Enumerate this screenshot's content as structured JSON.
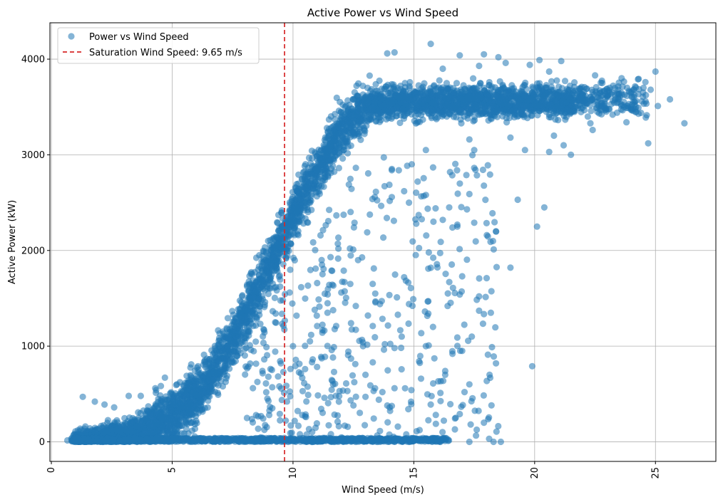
{
  "chart_data": {
    "type": "scatter",
    "title": "Active Power vs Wind Speed",
    "xlabel": "Wind Speed (m/s)",
    "ylabel": "Active Power (kW)",
    "xlim": [
      -0.06,
      27.5
    ],
    "ylim": [
      -205,
      4380
    ],
    "xticks": [
      0,
      5,
      10,
      15,
      20,
      25
    ],
    "yticks": [
      0,
      1000,
      2000,
      3000,
      4000
    ],
    "x_tick_rotation_deg": 90,
    "grid": true,
    "legend_position": "top-left",
    "series": [
      {
        "name": "Power vs Wind Speed",
        "kind": "scatter",
        "color": "#1f77b4",
        "alpha": 0.55,
        "density_profile": {
          "description": "dense cloud following a power curve: near 0 kW below ~4 m/s, rising steeply from ~5.5 to ~13 m/s, saturating at ~3300-3800 kW up to ~22 m/s, sparse above",
          "curve_points": [
            [
              1.0,
              0
            ],
            [
              3.0,
              60
            ],
            [
              4.0,
              130
            ],
            [
              5.0,
              260
            ],
            [
              6.0,
              480
            ],
            [
              7.0,
              850
            ],
            [
              8.0,
              1300
            ],
            [
              9.0,
              1850
            ],
            [
              10.0,
              2350
            ],
            [
              11.0,
              2850
            ],
            [
              12.0,
              3250
            ],
            [
              13.0,
              3500
            ],
            [
              14.0,
              3550
            ],
            [
              22.0,
              3560
            ],
            [
              25.0,
              3600
            ]
          ]
        },
        "points": [
          [
            1.0,
            0
          ],
          [
            1.1,
            120
          ],
          [
            1.3,
            470
          ],
          [
            1.8,
            420
          ],
          [
            2.2,
            390
          ],
          [
            2.6,
            360
          ],
          [
            3.2,
            480
          ],
          [
            3.7,
            480
          ],
          [
            4.3,
            560
          ],
          [
            4.7,
            670
          ],
          [
            5.6,
            690
          ],
          [
            13.9,
            4060
          ],
          [
            14.2,
            4070
          ],
          [
            15.7,
            4160
          ],
          [
            16.9,
            4040
          ],
          [
            17.9,
            4050
          ],
          [
            18.5,
            4020
          ],
          [
            20.2,
            3990
          ],
          [
            21.1,
            3980
          ],
          [
            23.6,
            3800
          ],
          [
            24.8,
            3680
          ],
          [
            25.0,
            3870
          ],
          [
            25.6,
            3580
          ],
          [
            26.2,
            3330
          ],
          [
            24.7,
            3120
          ],
          [
            21.5,
            3000
          ],
          [
            20.6,
            3030
          ],
          [
            20.4,
            2450
          ],
          [
            20.1,
            2250
          ],
          [
            19.3,
            2530
          ],
          [
            18.4,
            2200
          ],
          [
            17.3,
            2590
          ],
          [
            16.5,
            2820
          ],
          [
            15.5,
            2580
          ],
          [
            19.0,
            1820
          ],
          [
            17.7,
            1520
          ],
          [
            17.7,
            1370
          ],
          [
            17.0,
            1730
          ],
          [
            15.6,
            1810
          ],
          [
            14.6,
            1720
          ],
          [
            14.3,
            1510
          ],
          [
            13.6,
            1440
          ],
          [
            13.1,
            1320
          ],
          [
            12.4,
            1240
          ],
          [
            12.0,
            1560
          ],
          [
            11.5,
            1640
          ],
          [
            11.2,
            1850
          ],
          [
            19.9,
            790
          ],
          [
            18.4,
            820
          ],
          [
            16.3,
            740
          ],
          [
            16.8,
            1090
          ],
          [
            17.4,
            1100
          ],
          [
            17.0,
            950
          ],
          [
            15.6,
            1470
          ],
          [
            15.6,
            1340
          ],
          [
            14.8,
            1440
          ],
          [
            13.3,
            830
          ],
          [
            13.0,
            700
          ],
          [
            14.2,
            560
          ],
          [
            14.0,
            360
          ],
          [
            14.9,
            540
          ],
          [
            15.3,
            660
          ],
          [
            15.7,
            390
          ],
          [
            16.1,
            510
          ],
          [
            17.3,
            600
          ],
          [
            17.1,
            520
          ],
          [
            16.9,
            290
          ],
          [
            17.9,
            200
          ],
          [
            16.7,
            130
          ],
          [
            18.3,
            0
          ],
          [
            18.6,
            0
          ],
          [
            17.3,
            0
          ],
          [
            16.1,
            0
          ],
          [
            14.8,
            0
          ],
          [
            13.5,
            0
          ],
          [
            12.6,
            0
          ],
          [
            11.7,
            0
          ],
          [
            10.8,
            0
          ],
          [
            9.8,
            0
          ],
          [
            8.9,
            990
          ],
          [
            8.0,
            970
          ],
          [
            10.0,
            1000
          ],
          [
            10.7,
            1050
          ],
          [
            10.5,
            760
          ],
          [
            10.4,
            530
          ],
          [
            11.3,
            460
          ],
          [
            11.9,
            420
          ],
          [
            12.5,
            380
          ],
          [
            13.0,
            470
          ],
          [
            13.7,
            520
          ],
          [
            12.9,
            1000
          ],
          [
            12.4,
            870
          ],
          [
            11.6,
            960
          ],
          [
            11.0,
            1210
          ],
          [
            9.5,
            820
          ],
          [
            9.6,
            730
          ],
          [
            12.2,
            610
          ],
          [
            13.2,
            590
          ],
          [
            15.8,
            610
          ],
          [
            16.3,
            700
          ],
          [
            16.6,
            920
          ],
          [
            14.2,
            980
          ],
          [
            13.8,
            1020
          ],
          [
            14.5,
            1100
          ],
          [
            15.5,
            1000
          ],
          [
            16.4,
            1420
          ],
          [
            16.9,
            1540
          ],
          [
            13.3,
            1210
          ],
          [
            12.6,
            1420
          ],
          [
            10.9,
            1380
          ],
          [
            11.7,
            730
          ],
          [
            15.9,
            2440
          ],
          [
            16.2,
            2320
          ],
          [
            16.6,
            2240
          ],
          [
            17.2,
            2430
          ],
          [
            17.5,
            2290
          ],
          [
            15.1,
            2280
          ],
          [
            15.2,
            2370
          ],
          [
            14.8,
            2500
          ],
          [
            14.6,
            2620
          ],
          [
            16.8,
            2270
          ],
          [
            16.8,
            2250
          ],
          [
            15.5,
            3050
          ],
          [
            17.3,
            3160
          ],
          [
            17.5,
            3050
          ],
          [
            19.0,
            3180
          ],
          [
            19.6,
            3050
          ],
          [
            20.8,
            3200
          ],
          [
            21.2,
            3100
          ],
          [
            22.4,
            3260
          ],
          [
            23.8,
            3340
          ],
          [
            24.2,
            3450
          ],
          [
            25.1,
            3510
          ],
          [
            22.2,
            3400
          ],
          [
            24.6,
            3390
          ],
          [
            23.9,
            3530
          ],
          [
            19.8,
            3940
          ],
          [
            18.8,
            3960
          ],
          [
            17.7,
            3930
          ],
          [
            16.2,
            3900
          ],
          [
            20.6,
            3870
          ],
          [
            22.8,
            3750
          ],
          [
            22.5,
            3830
          ],
          [
            23.1,
            3700
          ]
        ]
      },
      {
        "name": "Saturation Wind Speed: 9.65 m/s",
        "kind": "vline",
        "x": 9.65,
        "color": "#d62728",
        "dash": "6,4"
      }
    ]
  }
}
